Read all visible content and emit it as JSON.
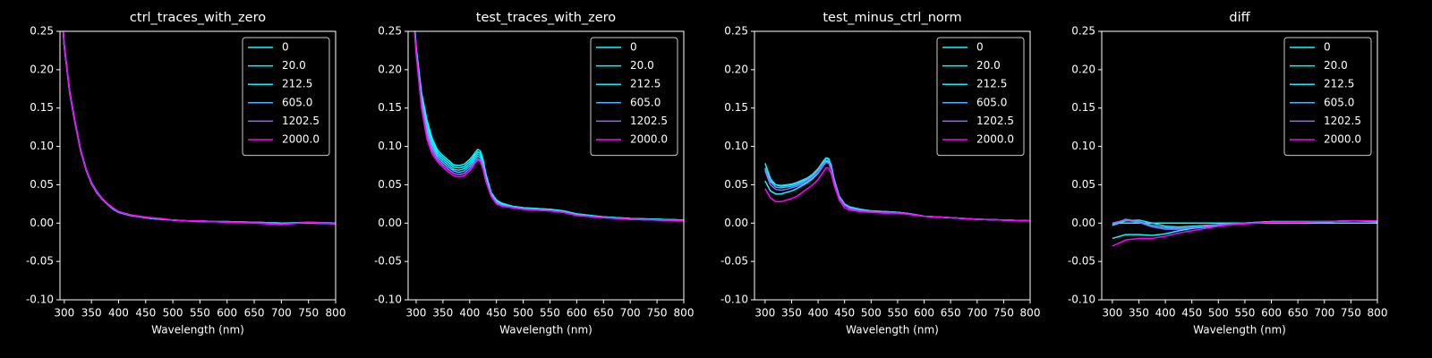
{
  "chart_data": [
    {
      "type": "line",
      "title": "ctrl_traces_with_zero",
      "x_label": "Wavelength (nm)",
      "xlim": [
        292,
        800
      ],
      "ylim": [
        -0.1,
        0.25
      ],
      "xticks": [
        300,
        350,
        400,
        450,
        500,
        550,
        600,
        650,
        700,
        750,
        800
      ],
      "yticks": [
        {
          "value": -0.1,
          "label": "-0.10"
        },
        -0.05,
        {
          "value": 0,
          "label": "0.00"
        },
        0.05,
        {
          "value": 0.1,
          "label": "0.10"
        },
        0.15,
        {
          "value": 0.2,
          "label": "0.20"
        },
        0.25
      ],
      "legend": "upper right",
      "x": [
        295,
        300,
        310,
        320,
        330,
        340,
        350,
        360,
        370,
        380,
        390,
        400,
        420,
        440,
        460,
        480,
        500,
        525,
        550,
        575,
        600,
        650,
        700,
        750,
        800
      ],
      "series": [
        {
          "name": "0",
          "color": "#00ffff",
          "values": [
            0.28,
            0.23,
            0.17,
            0.13,
            0.095,
            0.07,
            0.052,
            0.04,
            0.032,
            0.025,
            0.019,
            0.015,
            0.011,
            0.008,
            0.006,
            0.005,
            0.004,
            0.003,
            0.003,
            0.002,
            0.002,
            0.001,
            0.0,
            0.0,
            0.0
          ]
        },
        {
          "name": "20.0",
          "color": "#03fcff",
          "values": [
            0.281,
            0.231,
            0.171,
            0.131,
            0.096,
            0.071,
            0.053,
            0.041,
            0.032,
            0.025,
            0.019,
            0.015,
            0.011,
            0.008,
            0.006,
            0.005,
            0.004,
            0.003,
            0.003,
            0.002,
            0.002,
            0.001,
            0.0,
            0.001,
            0.0
          ]
        },
        {
          "name": "212.5",
          "color": "#1be4ff",
          "values": [
            0.279,
            0.229,
            0.169,
            0.129,
            0.095,
            0.07,
            0.052,
            0.04,
            0.031,
            0.025,
            0.019,
            0.015,
            0.011,
            0.008,
            0.006,
            0.005,
            0.004,
            0.003,
            0.002,
            0.002,
            0.001,
            0.001,
            0.0,
            0.0,
            0.0
          ]
        },
        {
          "name": "605.0",
          "color": "#4db2ff",
          "values": [
            0.28,
            0.23,
            0.17,
            0.13,
            0.094,
            0.069,
            0.051,
            0.039,
            0.031,
            0.024,
            0.018,
            0.014,
            0.01,
            0.008,
            0.006,
            0.005,
            0.004,
            0.003,
            0.003,
            0.002,
            0.002,
            0.001,
            0.0,
            0.0,
            -0.001
          ]
        },
        {
          "name": "1202.5",
          "color": "#9966ff",
          "values": [
            0.282,
            0.232,
            0.172,
            0.132,
            0.096,
            0.07,
            0.052,
            0.04,
            0.032,
            0.025,
            0.019,
            0.015,
            0.011,
            0.008,
            0.007,
            0.005,
            0.004,
            0.003,
            0.002,
            0.002,
            0.002,
            0.001,
            -0.001,
            0.001,
            0.0
          ]
        },
        {
          "name": "2000.0",
          "color": "#ff00ff",
          "values": [
            0.28,
            0.23,
            0.17,
            0.13,
            0.095,
            0.07,
            0.052,
            0.04,
            0.032,
            0.025,
            0.02,
            0.015,
            0.011,
            0.009,
            0.007,
            0.006,
            0.004,
            0.003,
            0.003,
            0.002,
            0.001,
            0.0,
            -0.002,
            0.001,
            -0.001
          ]
        }
      ]
    },
    {
      "type": "line",
      "title": "test_traces_with_zero",
      "x_label": "Wavelength (nm)",
      "xlim": [
        285,
        800
      ],
      "ylim": [
        -0.1,
        0.25
      ],
      "xticks": [
        300,
        350,
        400,
        450,
        500,
        550,
        600,
        650,
        700,
        750,
        800
      ],
      "yticks": [
        {
          "value": -0.1,
          "label": "-0.10"
        },
        -0.05,
        {
          "value": 0,
          "label": "0.00"
        },
        0.05,
        {
          "value": 0.1,
          "label": "0.10"
        },
        0.15,
        {
          "value": 0.2,
          "label": "0.20"
        },
        0.25
      ],
      "legend": "upper right",
      "x": [
        295,
        300,
        310,
        320,
        330,
        340,
        350,
        360,
        370,
        380,
        390,
        400,
        405,
        410,
        415,
        420,
        425,
        430,
        440,
        450,
        460,
        480,
        500,
        525,
        550,
        575,
        600,
        650,
        700,
        750,
        800
      ],
      "series": [
        {
          "name": "0",
          "color": "#00ffff",
          "values": [
            0.28,
            0.23,
            0.17,
            0.135,
            0.11,
            0.095,
            0.088,
            0.082,
            0.076,
            0.075,
            0.077,
            0.083,
            0.087,
            0.092,
            0.096,
            0.094,
            0.083,
            0.065,
            0.04,
            0.03,
            0.026,
            0.022,
            0.02,
            0.019,
            0.018,
            0.016,
            0.012,
            0.008,
            0.006,
            0.005,
            0.004
          ]
        },
        {
          "name": "20.0",
          "color": "#03fcff",
          "values": [
            0.278,
            0.228,
            0.166,
            0.13,
            0.106,
            0.092,
            0.085,
            0.079,
            0.073,
            0.072,
            0.074,
            0.08,
            0.084,
            0.089,
            0.093,
            0.091,
            0.08,
            0.063,
            0.039,
            0.029,
            0.025,
            0.022,
            0.02,
            0.019,
            0.018,
            0.016,
            0.012,
            0.008,
            0.006,
            0.005,
            0.004
          ]
        },
        {
          "name": "212.5",
          "color": "#1be4ff",
          "values": [
            0.276,
            0.226,
            0.162,
            0.125,
            0.102,
            0.089,
            0.082,
            0.076,
            0.07,
            0.069,
            0.071,
            0.077,
            0.081,
            0.086,
            0.09,
            0.088,
            0.077,
            0.06,
            0.038,
            0.028,
            0.024,
            0.021,
            0.019,
            0.018,
            0.017,
            0.015,
            0.011,
            0.008,
            0.006,
            0.005,
            0.004
          ]
        },
        {
          "name": "605.0",
          "color": "#4db2ff",
          "values": [
            0.274,
            0.224,
            0.158,
            0.12,
            0.098,
            0.086,
            0.079,
            0.073,
            0.068,
            0.066,
            0.068,
            0.074,
            0.078,
            0.083,
            0.087,
            0.085,
            0.075,
            0.058,
            0.037,
            0.027,
            0.023,
            0.021,
            0.019,
            0.018,
            0.017,
            0.015,
            0.011,
            0.007,
            0.005,
            0.004,
            0.003
          ]
        },
        {
          "name": "1202.5",
          "color": "#9966ff",
          "values": [
            0.272,
            0.222,
            0.154,
            0.115,
            0.094,
            0.083,
            0.076,
            0.07,
            0.065,
            0.063,
            0.065,
            0.071,
            0.075,
            0.08,
            0.084,
            0.082,
            0.072,
            0.056,
            0.036,
            0.026,
            0.023,
            0.02,
            0.018,
            0.017,
            0.016,
            0.014,
            0.01,
            0.007,
            0.005,
            0.004,
            0.003
          ]
        },
        {
          "name": "2000.0",
          "color": "#ff00ff",
          "values": [
            0.27,
            0.22,
            0.15,
            0.11,
            0.09,
            0.08,
            0.073,
            0.067,
            0.062,
            0.06,
            0.062,
            0.068,
            0.072,
            0.078,
            0.082,
            0.08,
            0.07,
            0.055,
            0.035,
            0.025,
            0.022,
            0.02,
            0.018,
            0.017,
            0.016,
            0.014,
            0.01,
            0.007,
            0.005,
            0.004,
            0.003
          ]
        }
      ]
    },
    {
      "type": "line",
      "title": "test_minus_ctrl_norm",
      "x_label": "Wavelength (nm)",
      "xlim": [
        280,
        800
      ],
      "ylim": [
        -0.1,
        0.25
      ],
      "xticks": [
        300,
        350,
        400,
        450,
        500,
        550,
        600,
        650,
        700,
        750,
        800
      ],
      "yticks": [
        {
          "value": -0.1,
          "label": "-0.10"
        },
        -0.05,
        {
          "value": 0,
          "label": "0.00"
        },
        0.05,
        {
          "value": 0.1,
          "label": "0.10"
        },
        0.15,
        {
          "value": 0.2,
          "label": "0.20"
        },
        0.25
      ],
      "legend": "upper right",
      "x": [
        300,
        310,
        320,
        330,
        340,
        350,
        360,
        370,
        380,
        390,
        400,
        405,
        410,
        415,
        420,
        425,
        430,
        440,
        450,
        460,
        480,
        500,
        525,
        550,
        575,
        600,
        650,
        700,
        750,
        800
      ],
      "series": [
        {
          "name": "0",
          "color": "#00ffff",
          "values": [
            0.078,
            0.058,
            0.05,
            0.048,
            0.049,
            0.05,
            0.052,
            0.055,
            0.058,
            0.063,
            0.07,
            0.075,
            0.08,
            0.085,
            0.084,
            0.075,
            0.058,
            0.035,
            0.025,
            0.021,
            0.018,
            0.016,
            0.015,
            0.014,
            0.012,
            0.009,
            0.007,
            0.005,
            0.004,
            0.003
          ]
        },
        {
          "name": "20.0",
          "color": "#03fcff",
          "values": [
            0.055,
            0.042,
            0.038,
            0.038,
            0.04,
            0.042,
            0.045,
            0.049,
            0.053,
            0.058,
            0.065,
            0.07,
            0.075,
            0.08,
            0.08,
            0.072,
            0.056,
            0.034,
            0.024,
            0.02,
            0.017,
            0.015,
            0.014,
            0.014,
            0.012,
            0.009,
            0.007,
            0.005,
            0.004,
            0.003
          ]
        },
        {
          "name": "212.5",
          "color": "#1be4ff",
          "values": [
            0.07,
            0.055,
            0.05,
            0.049,
            0.05,
            0.051,
            0.053,
            0.056,
            0.059,
            0.064,
            0.071,
            0.076,
            0.081,
            0.085,
            0.083,
            0.074,
            0.057,
            0.034,
            0.024,
            0.021,
            0.018,
            0.016,
            0.015,
            0.014,
            0.012,
            0.009,
            0.007,
            0.005,
            0.004,
            0.003
          ]
        },
        {
          "name": "605.0",
          "color": "#4db2ff",
          "values": [
            0.072,
            0.054,
            0.047,
            0.046,
            0.047,
            0.048,
            0.05,
            0.053,
            0.057,
            0.062,
            0.069,
            0.074,
            0.078,
            0.082,
            0.081,
            0.072,
            0.056,
            0.034,
            0.024,
            0.02,
            0.017,
            0.016,
            0.015,
            0.014,
            0.012,
            0.009,
            0.007,
            0.005,
            0.004,
            0.003
          ]
        },
        {
          "name": "1202.5",
          "color": "#9966ff",
          "values": [
            0.068,
            0.05,
            0.044,
            0.043,
            0.044,
            0.046,
            0.048,
            0.051,
            0.055,
            0.06,
            0.066,
            0.071,
            0.075,
            0.079,
            0.078,
            0.07,
            0.054,
            0.033,
            0.023,
            0.019,
            0.016,
            0.015,
            0.014,
            0.013,
            0.012,
            0.009,
            0.007,
            0.005,
            0.004,
            0.003
          ]
        },
        {
          "name": "2000.0",
          "color": "#ff00ff",
          "values": [
            0.045,
            0.033,
            0.028,
            0.028,
            0.03,
            0.032,
            0.035,
            0.04,
            0.045,
            0.05,
            0.057,
            0.062,
            0.067,
            0.072,
            0.072,
            0.064,
            0.05,
            0.03,
            0.02,
            0.017,
            0.015,
            0.014,
            0.013,
            0.013,
            0.011,
            0.009,
            0.007,
            0.005,
            0.004,
            0.003
          ]
        }
      ]
    },
    {
      "type": "line",
      "title": "diff",
      "x_label": "Wavelength (nm)",
      "xlim": [
        280,
        800
      ],
      "ylim": [
        -0.1,
        0.25
      ],
      "xticks": [
        300,
        350,
        400,
        450,
        500,
        550,
        600,
        650,
        700,
        750,
        800
      ],
      "yticks": [
        {
          "value": -0.1,
          "label": "-0.10"
        },
        -0.05,
        {
          "value": 0,
          "label": "0.00"
        },
        0.05,
        {
          "value": 0.1,
          "label": "0.10"
        },
        0.15,
        {
          "value": 0.2,
          "label": "0.20"
        },
        0.25
      ],
      "legend": "upper right",
      "x": [
        300,
        325,
        350,
        375,
        400,
        425,
        450,
        475,
        500,
        525,
        550,
        575,
        600,
        650,
        700,
        750,
        800
      ],
      "series": [
        {
          "name": "0",
          "color": "#00ffff",
          "values": [
            0,
            0,
            0,
            0,
            0,
            0,
            0,
            0,
            0,
            0,
            0,
            0,
            0,
            0,
            0,
            0,
            0
          ]
        },
        {
          "name": "20.0",
          "color": "#03fcff",
          "values": [
            -0.02,
            -0.015,
            -0.015,
            -0.016,
            -0.014,
            -0.01,
            -0.007,
            -0.005,
            -0.003,
            -0.001,
            0,
            0.001,
            0.002,
            0.002,
            0.002,
            0.003,
            0.003
          ]
        },
        {
          "name": "212.5",
          "color": "#1be4ff",
          "values": [
            -0.003,
            0.003,
            0.004,
            0,
            -0.004,
            -0.005,
            -0.004,
            -0.003,
            -0.002,
            -0.001,
            0,
            0.001,
            0.002,
            0.002,
            0.002,
            0.003,
            0.002
          ]
        },
        {
          "name": "605.0",
          "color": "#4db2ff",
          "values": [
            -0.002,
            0.005,
            0.002,
            -0.003,
            -0.006,
            -0.007,
            -0.006,
            -0.004,
            -0.002,
            -0.001,
            0,
            0.001,
            0.002,
            0.002,
            0.002,
            0.003,
            0.003
          ]
        },
        {
          "name": "1202.5",
          "color": "#9966ff",
          "values": [
            0,
            0.004,
            0.001,
            -0.005,
            -0.008,
            -0.008,
            -0.006,
            -0.004,
            -0.002,
            -0.001,
            0,
            0,
            0.001,
            0.002,
            0.002,
            0.003,
            0.003
          ]
        },
        {
          "name": "2000.0",
          "color": "#ff00ff",
          "values": [
            -0.03,
            -0.022,
            -0.02,
            -0.02,
            -0.017,
            -0.013,
            -0.01,
            -0.007,
            -0.004,
            -0.002,
            -0.001,
            0,
            0.001,
            0.001,
            0.002,
            0.003,
            0.003
          ]
        }
      ]
    }
  ]
}
